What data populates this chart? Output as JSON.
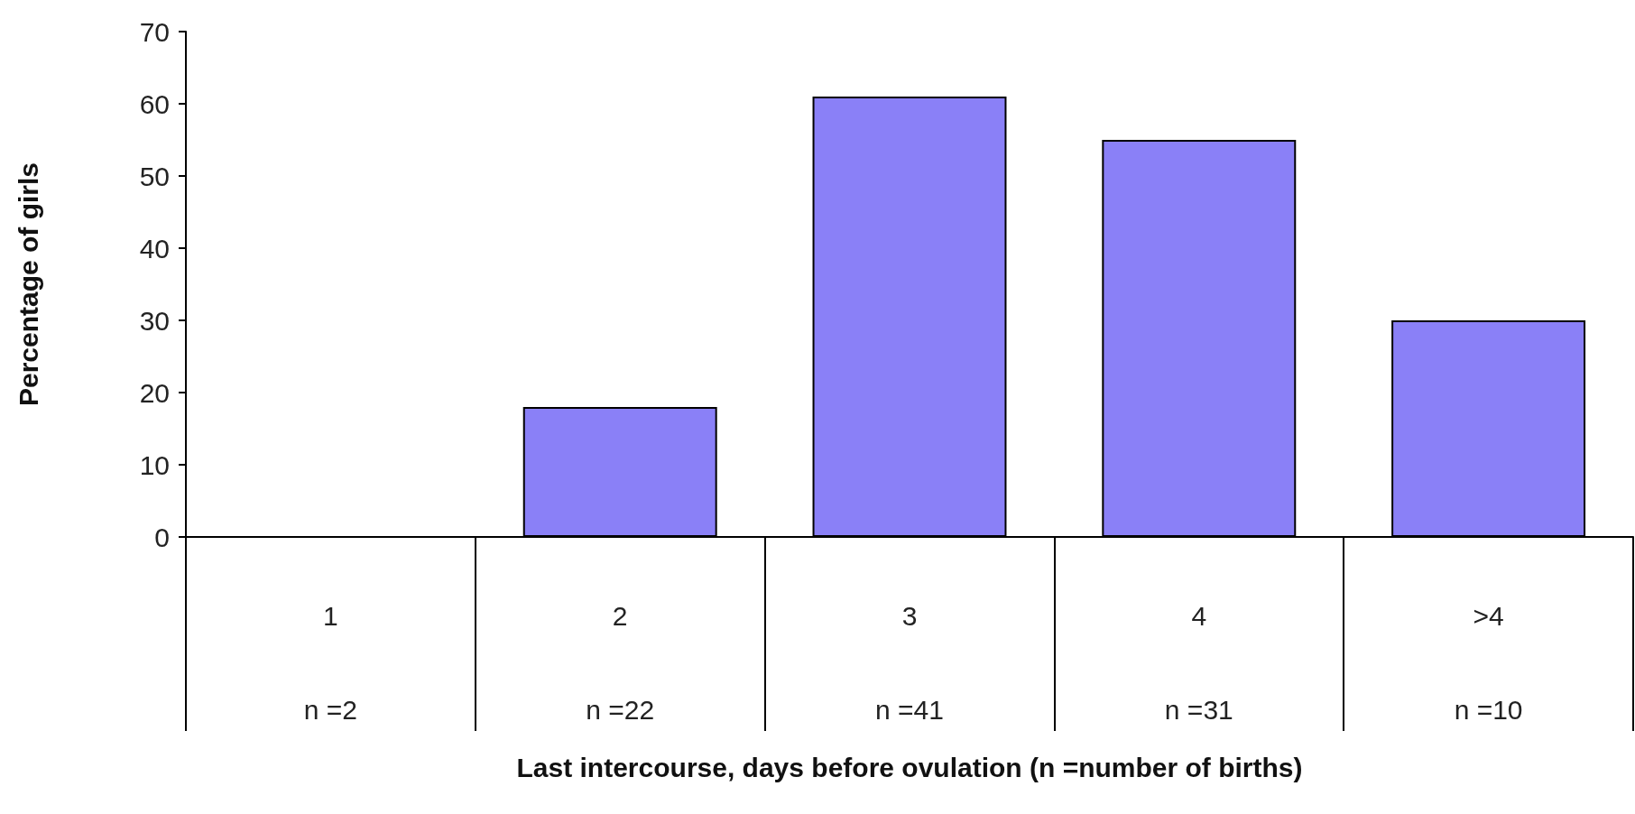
{
  "chart_data": {
    "type": "bar",
    "xlabel": "Last intercourse, days before ovulation (n =number of births)",
    "ylabel": "Percentage of girls",
    "categories": [
      "1",
      "2",
      "3",
      "4",
      ">4"
    ],
    "values": [
      0,
      18,
      61,
      55,
      30
    ],
    "color": "#8a80f7",
    "ylim": [
      0,
      70
    ],
    "yticks": [
      0,
      10,
      20,
      30,
      40,
      50,
      60,
      70
    ],
    "grid": false,
    "annotations": [
      "n =2",
      "n =22",
      "n =41",
      "n =31",
      "n =10"
    ]
  }
}
